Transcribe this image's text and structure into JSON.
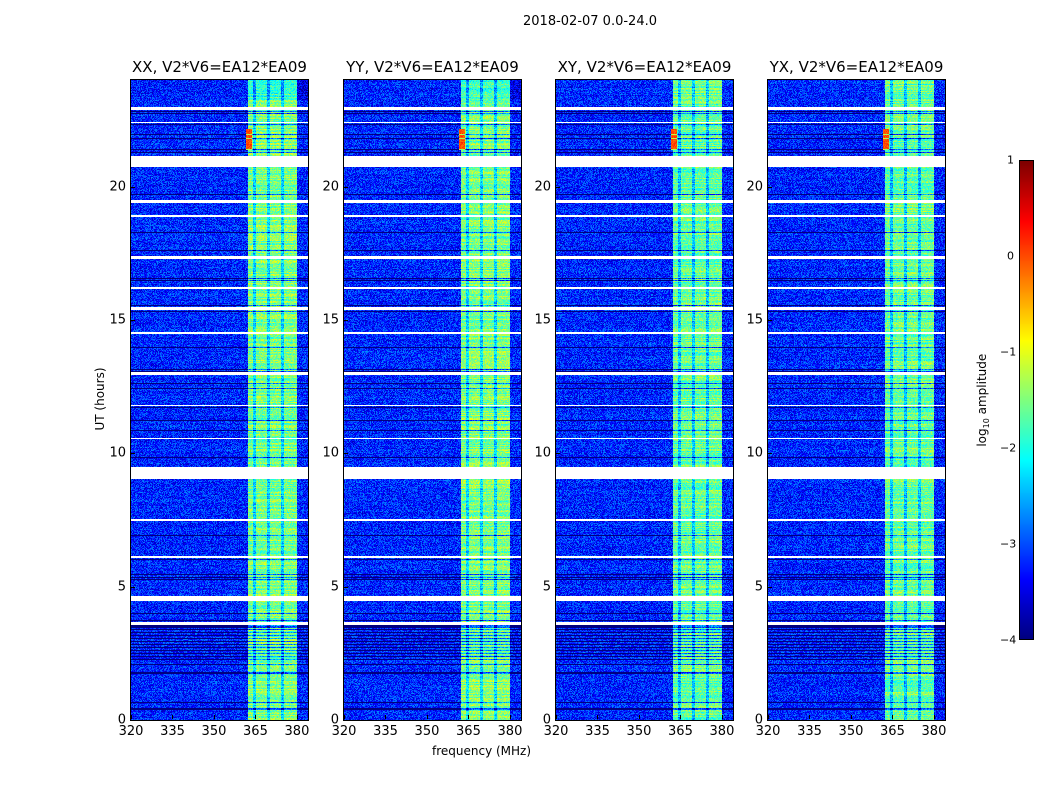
{
  "chart_data": {
    "type": "heatmap",
    "title": "2018-02-07 0.0-24.0",
    "xlabel": "frequency (MHz)",
    "ylabel": "UT (hours)",
    "xlim": [
      320,
      384
    ],
    "ylim": [
      0,
      24
    ],
    "xticks": [
      "320",
      "335",
      "350",
      "365",
      "380"
    ],
    "yticks": [
      "0",
      "5",
      "10",
      "15",
      "20"
    ],
    "panels": [
      {
        "title": "XX, V2*V6=EA12*EA09"
      },
      {
        "title": "YY, V2*V6=EA12*EA09"
      },
      {
        "title": "XY, V2*V6=EA12*EA09"
      },
      {
        "title": "YX, V2*V6=EA12*EA09"
      }
    ],
    "colorbar": {
      "label_prefix": "log",
      "label_sub": "10",
      "label_suffix": " amplitude",
      "range": [
        -4,
        1
      ],
      "ticks": [
        "1",
        "0",
        "−1",
        "−2",
        "−3",
        "−4"
      ],
      "colormap": "jet"
    },
    "background_level": -3.2,
    "band_level": -1.5,
    "bright_band_mhz": [
      362,
      380
    ],
    "flagged_hours": [
      [
        9.05,
        9.5
      ],
      [
        20.75,
        21.15
      ],
      [
        4.5,
        4.65
      ],
      [
        15.4,
        15.5
      ],
      [
        17.3,
        17.4
      ],
      [
        22.9,
        23.0
      ],
      [
        12.95,
        13.05
      ],
      [
        3.6,
        3.7
      ],
      [
        10.55,
        10.6
      ],
      [
        19.4,
        19.5
      ],
      [
        14.5,
        14.55
      ],
      [
        18.9,
        18.95
      ],
      [
        7.5,
        7.55
      ],
      [
        6.1,
        6.15
      ],
      [
        22.4,
        22.45
      ],
      [
        16.2,
        16.25
      ],
      [
        11.8,
        11.85
      ]
    ]
  }
}
